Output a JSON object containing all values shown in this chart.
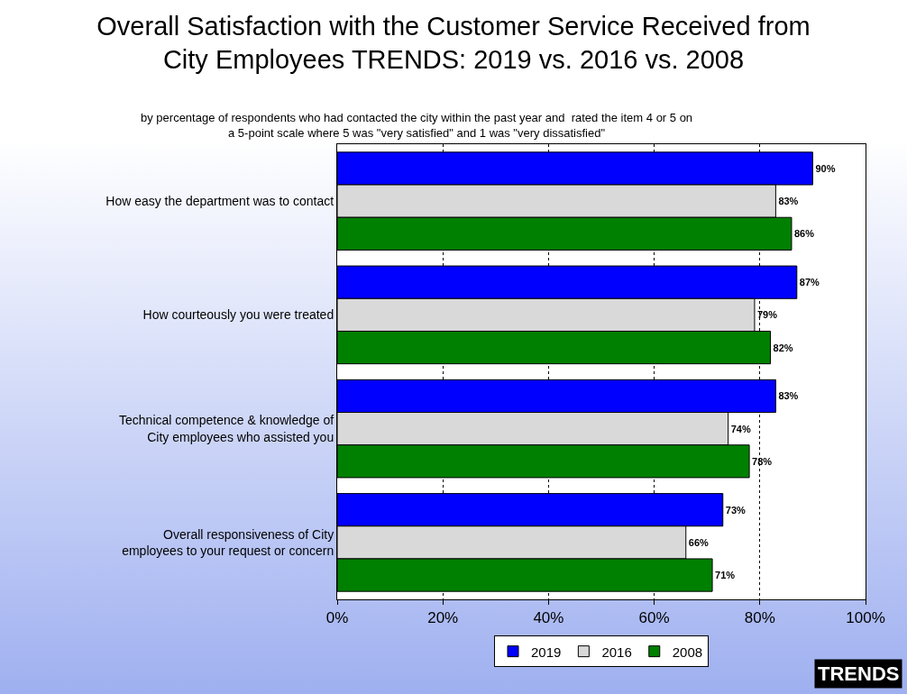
{
  "chart_data": {
    "type": "bar",
    "orientation": "horizontal",
    "title": "Overall Satisfaction with the Customer Service Received from City Employees TRENDS: 2019 vs. 2016 vs. 2008",
    "subtitle": "by percentage of respondents who had contacted the city within the past year and  rated the item 4 or 5 on a 5-point scale where 5 was \"very satisfied\" and 1 was \"very dissatisfied\"",
    "categories": [
      "How easy the department was to contact",
      "How courteously you were treated",
      "Technical competence & knowledge of City employees who assisted you",
      "Overall responsiveness of City employees to your request or concern"
    ],
    "series": [
      {
        "name": "2019",
        "color": "#0000ff",
        "values": [
          90,
          87,
          83,
          73
        ],
        "value_labels": [
          "90%",
          "87%",
          "83%",
          "73%"
        ]
      },
      {
        "name": "2016",
        "color": "#d9d9d9",
        "values": [
          83,
          79,
          74,
          66
        ],
        "value_labels": [
          "83%",
          "79%",
          "74%",
          "66%"
        ]
      },
      {
        "name": "2008",
        "color": "#008000",
        "values": [
          86,
          82,
          78,
          71
        ],
        "value_labels": [
          "86%",
          "82%",
          "78%",
          "71%"
        ]
      }
    ],
    "xlim": [
      0,
      100
    ],
    "xticks": [
      {
        "value": 0,
        "label": "0%"
      },
      {
        "value": 20,
        "label": "20%"
      },
      {
        "value": 40,
        "label": "40%"
      },
      {
        "value": 60,
        "label": "60%"
      },
      {
        "value": 80,
        "label": "80%"
      },
      {
        "value": 100,
        "label": "100%"
      }
    ],
    "grid": "x",
    "legend": "bottom",
    "annotations": [
      "TRENDS"
    ]
  }
}
